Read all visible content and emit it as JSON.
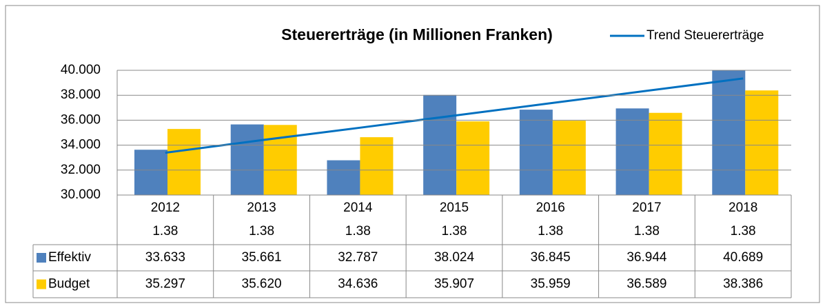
{
  "chart_data": {
    "type": "bar",
    "title": "Steuererträge (in Millionen Franken)",
    "categories": [
      "2012",
      "2013",
      "2014",
      "2015",
      "2016",
      "2017",
      "2018"
    ],
    "category_sublabels": [
      "1.38",
      "1.38",
      "1.38",
      "1.38",
      "1.38",
      "1.38",
      "1.38"
    ],
    "series": [
      {
        "name": "Effektiv",
        "color": "#4f81bd",
        "type": "bar",
        "values": [
          33633,
          35661,
          32787,
          38024,
          36845,
          36944,
          40689
        ],
        "value_labels": [
          "33.633",
          "35.661",
          "32.787",
          "38.024",
          "36.845",
          "36.944",
          "40.689"
        ]
      },
      {
        "name": "Budget",
        "color": "#ffcc00",
        "type": "bar",
        "values": [
          35297,
          35620,
          34636,
          35907,
          35959,
          36589,
          38386
        ],
        "value_labels": [
          "35.297",
          "35.620",
          "34.636",
          "35.907",
          "35.959",
          "36.589",
          "38.386"
        ]
      },
      {
        "name": "Trend Steuererträge",
        "color": "#0070c0",
        "type": "line",
        "values": [
          33391,
          34399,
          35376,
          36369,
          37362,
          38354,
          39347
        ]
      }
    ],
    "ylim": [
      30000,
      40000
    ],
    "yticks": [
      {
        "value": 30000,
        "label": "30.000"
      },
      {
        "value": 32000,
        "label": "32.000"
      },
      {
        "value": 34000,
        "label": "34.000"
      },
      {
        "value": 36000,
        "label": "36.000"
      },
      {
        "value": 38000,
        "label": "38.000"
      },
      {
        "value": 40000,
        "label": "40.000"
      }
    ],
    "grid": true,
    "legend": "top-right"
  }
}
